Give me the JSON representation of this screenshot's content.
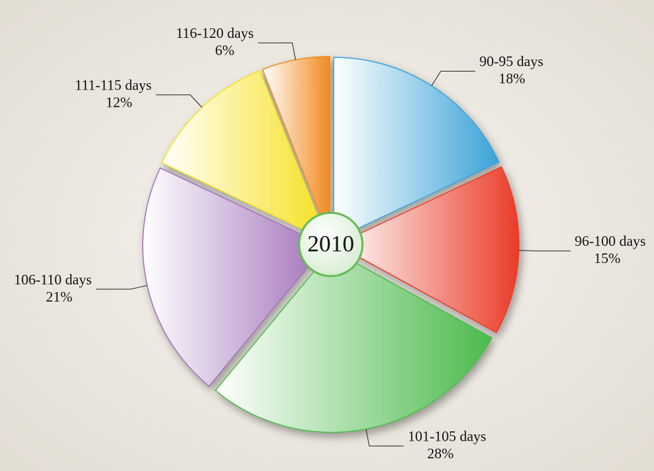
{
  "chart_data": {
    "type": "pie",
    "center_label": "2010",
    "categories": [
      "90-95 days",
      "96-100 days",
      "101-105 days",
      "106-110 days",
      "111-115 days",
      "116-120 days"
    ],
    "values": [
      18,
      15,
      28,
      21,
      12,
      6
    ],
    "value_labels": [
      "18%",
      "15%",
      "28%",
      "21%",
      "12%",
      "6%"
    ],
    "colors": [
      "#3aa2d8",
      "#ea3b28",
      "#4cba4c",
      "#a272ba",
      "#f6e11e",
      "#f18a1e"
    ]
  }
}
